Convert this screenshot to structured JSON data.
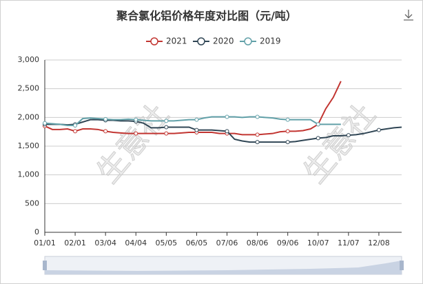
{
  "chart_data": {
    "type": "line",
    "title": "聚合氯化铝价格年度对比图（元/吨）",
    "watermark": "生意社",
    "categories": [
      "01/01",
      null,
      null,
      null,
      "02/01",
      null,
      null,
      null,
      "03/04",
      null,
      null,
      null,
      "04/04",
      null,
      null,
      null,
      "05/05",
      null,
      null,
      null,
      "06/05",
      null,
      null,
      null,
      "07/06",
      null,
      null,
      null,
      "08/06",
      null,
      null,
      null,
      "09/06",
      null,
      null,
      null,
      "10/07",
      null,
      null,
      null,
      "11/07",
      null,
      null,
      null,
      "12/08",
      null,
      null,
      null
    ],
    "series": [
      {
        "name": "2021",
        "color": "#c23531",
        "values": [
          1850,
          1790,
          1790,
          1800,
          1760,
          1800,
          1800,
          1790,
          1760,
          1740,
          1730,
          1720,
          1720,
          1720,
          1720,
          1720,
          1720,
          1720,
          1730,
          1740,
          1740,
          1740,
          1740,
          1720,
          1720,
          1720,
          1700,
          1700,
          1700,
          1710,
          1720,
          1750,
          1760,
          1760,
          1770,
          1800,
          1880,
          2150,
          2350,
          2630,
          null,
          null,
          null,
          null,
          null,
          null,
          null,
          null
        ]
      },
      {
        "name": "2020",
        "color": "#2f4554",
        "values": [
          1880,
          1880,
          1880,
          1870,
          1880,
          1920,
          1960,
          1960,
          1950,
          1950,
          1940,
          1940,
          1930,
          1900,
          1820,
          1820,
          1830,
          1830,
          1830,
          1830,
          1780,
          1780,
          1780,
          1770,
          1760,
          1620,
          1590,
          1570,
          1570,
          1570,
          1570,
          1570,
          1570,
          1580,
          1600,
          1620,
          1640,
          1650,
          1680,
          1680,
          1690,
          1700,
          1720,
          1750,
          1780,
          1800,
          1820,
          1830
        ]
      },
      {
        "name": "2019",
        "color": "#61a0a8",
        "values": [
          1900,
          1890,
          1880,
          1860,
          1860,
          1980,
          1990,
          1980,
          1970,
          1960,
          1960,
          1970,
          1960,
          1950,
          1940,
          1940,
          1940,
          1940,
          1950,
          1960,
          1960,
          1990,
          2010,
          2010,
          2010,
          2010,
          2000,
          2010,
          2010,
          2000,
          1990,
          1970,
          1960,
          1960,
          1960,
          1960,
          1880,
          1880,
          1880,
          1880,
          null,
          null,
          null,
          null,
          null,
          null,
          null,
          null
        ]
      }
    ],
    "ylim": [
      0,
      3000
    ],
    "yticks": [
      0,
      500,
      {
        "value": 1000,
        "label": "1,000"
      },
      {
        "value": 1500,
        "label": "1,500"
      },
      {
        "value": 2000,
        "label": "2,000"
      },
      {
        "value": 2500,
        "label": "2,500"
      },
      {
        "value": 3000,
        "label": "3,000"
      }
    ],
    "grid": true,
    "legend": "top"
  }
}
